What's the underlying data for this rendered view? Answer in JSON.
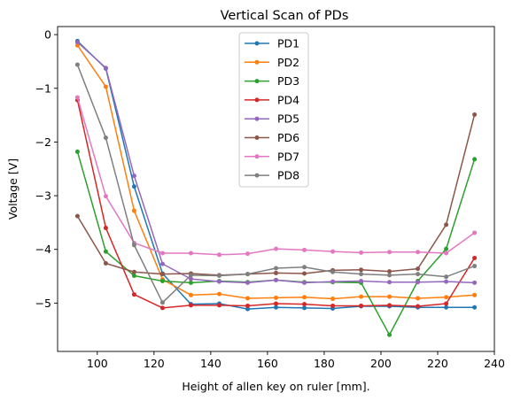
{
  "chart_data": {
    "type": "line",
    "title": "Vertical Scan of PDs",
    "xlabel": "Height of allen key on ruler [mm].",
    "ylabel": "Voltage [V]",
    "xlim": [
      86,
      240
    ],
    "ylim": [
      -5.9,
      0.15
    ],
    "xticks": [
      100,
      120,
      140,
      160,
      180,
      200,
      220,
      240
    ],
    "yticks": [
      0,
      -1,
      -2,
      -3,
      -4,
      -5
    ],
    "ytick_labels": [
      "0",
      "−1",
      "−2",
      "−3",
      "−4",
      "−5"
    ],
    "grid": false,
    "legend_position": "top-center",
    "x": [
      93,
      103,
      113,
      123,
      133,
      143,
      153,
      163,
      173,
      183,
      193,
      203,
      213,
      223,
      233
    ],
    "series": [
      {
        "name": "PD1",
        "color": "#1f77b4",
        "values": [
          -0.12,
          -0.63,
          -2.83,
          -4.45,
          -5.02,
          -5.01,
          -5.11,
          -5.08,
          -5.09,
          -5.1,
          -5.06,
          -5.06,
          -5.08,
          -5.08,
          -5.08
        ]
      },
      {
        "name": "PD2",
        "color": "#ff7f0e",
        "values": [
          -0.2,
          -0.97,
          -3.28,
          -4.56,
          -4.85,
          -4.83,
          -4.91,
          -4.9,
          -4.89,
          -4.92,
          -4.88,
          -4.88,
          -4.91,
          -4.89,
          -4.85
        ]
      },
      {
        "name": "PD3",
        "color": "#2ca02c",
        "values": [
          -2.18,
          -4.04,
          -4.49,
          -4.59,
          -4.62,
          -4.59,
          -4.61,
          -4.57,
          -4.61,
          -4.61,
          -4.62,
          -5.59,
          -4.59,
          -3.99,
          -2.32
        ]
      },
      {
        "name": "PD4",
        "color": "#d62728",
        "values": [
          -1.22,
          -3.6,
          -4.84,
          -5.09,
          -5.04,
          -5.04,
          -5.05,
          -5.01,
          -5.02,
          -5.05,
          -5.05,
          -5.04,
          -5.06,
          -5.01,
          -4.16
        ]
      },
      {
        "name": "PD5",
        "color": "#9467bd",
        "values": [
          -0.14,
          -0.62,
          -2.63,
          -4.27,
          -4.55,
          -4.6,
          -4.62,
          -4.57,
          -4.62,
          -4.6,
          -4.59,
          -4.61,
          -4.61,
          -4.6,
          -4.62
        ]
      },
      {
        "name": "PD6",
        "color": "#8c564b",
        "values": [
          -3.38,
          -4.26,
          -4.42,
          -4.46,
          -4.45,
          -4.48,
          -4.46,
          -4.44,
          -4.45,
          -4.39,
          -4.38,
          -4.41,
          -4.36,
          -3.54,
          -1.49
        ]
      },
      {
        "name": "PD7",
        "color": "#e377c2",
        "values": [
          -1.17,
          -3.01,
          -3.88,
          -4.07,
          -4.07,
          -4.1,
          -4.08,
          -3.99,
          -4.01,
          -4.04,
          -4.06,
          -4.05,
          -4.05,
          -4.07,
          -3.69
        ]
      },
      {
        "name": "PD8",
        "color": "#7f7f7f",
        "values": [
          -0.56,
          -1.92,
          -3.92,
          -4.99,
          -4.48,
          -4.49,
          -4.46,
          -4.35,
          -4.33,
          -4.42,
          -4.46,
          -4.48,
          -4.46,
          -4.51,
          -4.31
        ]
      }
    ]
  }
}
